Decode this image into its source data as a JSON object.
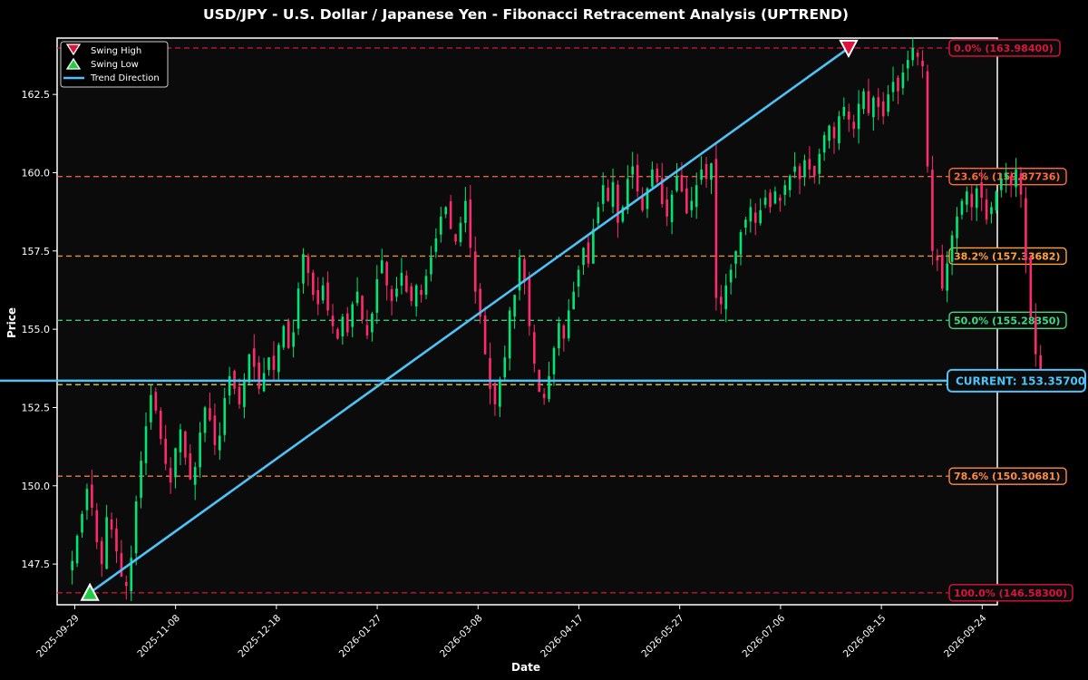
{
  "chart_data": {
    "type": "candlestick",
    "title": "USD/JPY - U.S. Dollar / Japanese Yen - Fibonacci Retracement Analysis (UPTREND)",
    "xlabel": "Date",
    "ylabel": "Price",
    "ylim": [
      146.2,
      164.3
    ],
    "xlim": [
      "2025-09-22",
      "2026-09-30"
    ],
    "y_ticks": [
      147.5,
      150.0,
      152.5,
      155.0,
      157.5,
      160.0,
      162.5
    ],
    "y_tick_labels": [
      "147.5",
      "150.0",
      "152.5",
      "155.0",
      "157.5",
      "160.0",
      "162.5"
    ],
    "x_ticks": [
      "2025-09-29",
      "2025-11-08",
      "2025-12-18",
      "2026-01-27",
      "2026-03-08",
      "2026-04-17",
      "2026-05-27",
      "2026-07-06",
      "2026-08-15",
      "2026-09-24"
    ],
    "legend": {
      "placement": "top-left",
      "entries": [
        "Swing High",
        "Swing Low",
        "Trend Direction"
      ]
    },
    "fib_levels": [
      {
        "pct": "0.0%",
        "value": 163.984,
        "label": "0.0% (163.98400)",
        "color": "#dc143c"
      },
      {
        "pct": "23.6%",
        "value": 159.87736,
        "label": "23.6% (159.87736)",
        "color": "#ff6a3d"
      },
      {
        "pct": "38.2%",
        "value": 157.33682,
        "label": "38.2% (157.33682)",
        "color": "#ff9f40"
      },
      {
        "pct": "50.0%",
        "value": 155.2835,
        "label": "50.0% (155.28350)",
        "color": "#3ddc84"
      },
      {
        "pct": "61.8%",
        "value": 153.23018,
        "label": "",
        "color": "#e6d23c"
      },
      {
        "pct": "78.6%",
        "value": 150.30681,
        "label": "78.6% (150.30681)",
        "color": "#ff8c42"
      },
      {
        "pct": "100.0%",
        "value": 146.583,
        "label": "100.0% (146.58300)",
        "color": "#dc143c"
      }
    ],
    "current_price": {
      "value": 153.357,
      "label": "CURRENT: 153.35700",
      "color": "#4fc3f7"
    },
    "swing_high": {
      "date": "2026-08-02",
      "price": 163.984
    },
    "swing_low": {
      "date": "2025-10-05",
      "price": 146.583
    },
    "trend_line": {
      "from": {
        "date": "2025-10-05",
        "price": 146.583
      },
      "to": {
        "date": "2026-08-02",
        "price": 163.984
      },
      "color": "#4fc3f7"
    },
    "ohlc_start_date": "2025-09-28",
    "ohlc_close": [
      147.6,
      148.4,
      149.1,
      149.9,
      149.3,
      148.2,
      147.5,
      149.0,
      148.6,
      147.9,
      147.1,
      146.8,
      147.7,
      149.5,
      150.8,
      151.9,
      152.9,
      152.4,
      151.5,
      150.7,
      150.1,
      151.2,
      151.8,
      150.9,
      150.2,
      150.6,
      151.7,
      152.5,
      152.1,
      151.3,
      151.6,
      152.8,
      153.5,
      153.1,
      152.6,
      153.4,
      154.2,
      153.8,
      153.1,
      153.6,
      154.1,
      153.7,
      154.5,
      155.1,
      154.4,
      154.9,
      156.3,
      157.4,
      156.8,
      156.1,
      155.8,
      156.4,
      155.6,
      155.1,
      154.7,
      155.4,
      154.9,
      155.8,
      156.2,
      155.3,
      154.8,
      155.5,
      156.6,
      157.2,
      156.4,
      155.9,
      156.3,
      156.8,
      156.2,
      155.9,
      156.4,
      156.1,
      156.7,
      157.3,
      157.9,
      158.6,
      158.9,
      158.2,
      157.8,
      158.4,
      159.1,
      157.6,
      156.2,
      155.4,
      154.2,
      153.1,
      152.6,
      153.4,
      154.1,
      155.6,
      156.1,
      157.3,
      156.5,
      155.1,
      153.9,
      153.0,
      152.8,
      153.5,
      154.4,
      155.2,
      154.7,
      155.6,
      156.2,
      156.9,
      157.6,
      157.1,
      158.2,
      158.9,
      159.6,
      159.1,
      159.7,
      158.4,
      158.9,
      159.8,
      160.2,
      159.4,
      158.8,
      159.5,
      160.1,
      159.7,
      159.0,
      158.6,
      159.3,
      159.9,
      159.4,
      158.7,
      159.1,
      159.6,
      160.1,
      159.8,
      160.3,
      156.0,
      155.8,
      156.4,
      156.9,
      157.5,
      158.1,
      158.5,
      158.9,
      158.4,
      158.8,
      159.2,
      158.9,
      159.4,
      159.1,
      159.6,
      159.9,
      160.2,
      159.8,
      160.4,
      160.1,
      159.9,
      160.6,
      161.2,
      161.5,
      161.1,
      161.8,
      162.1,
      161.7,
      161.4,
      162.2,
      162.6,
      161.9,
      162.4,
      162.1,
      161.8,
      162.5,
      162.9,
      162.6,
      163.2,
      163.6,
      163.98,
      163.7,
      163.4,
      160.2,
      157.5,
      157.2,
      156.3,
      157.1,
      158.0,
      158.6,
      159.1,
      159.4,
      158.9,
      159.5,
      159.2,
      158.5,
      158.9,
      159.4,
      159.8,
      160.0,
      159.6,
      160.1,
      159.3,
      157.2,
      155.4,
      154.2,
      153.6
    ]
  }
}
